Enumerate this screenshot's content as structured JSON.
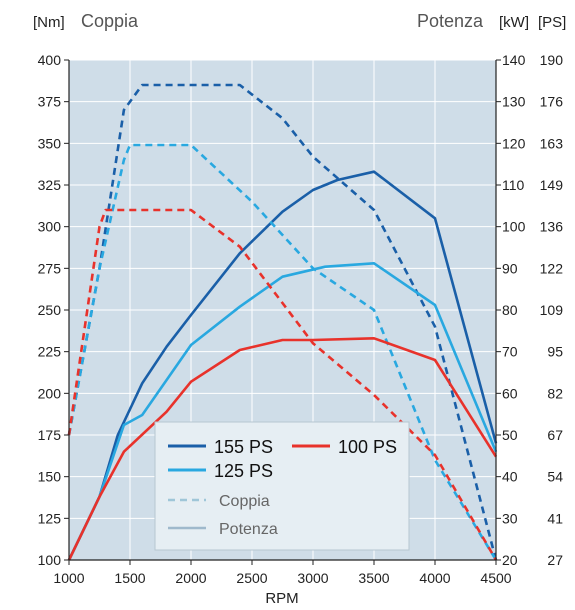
{
  "chart_data": {
    "type": "line",
    "header": {
      "left_unit": "[Nm]",
      "left_title": "Coppia",
      "right_title": "Potenza",
      "right_unit_kw": "[kW]",
      "right_unit_ps": "[PS]"
    },
    "xlabel": "RPM",
    "xlim": [
      1000,
      4500
    ],
    "x_ticks": [
      1000,
      1500,
      2000,
      2500,
      3000,
      3500,
      4000,
      4500
    ],
    "ylim": [
      100,
      400
    ],
    "y_ticks": [
      100,
      125,
      150,
      175,
      200,
      225,
      250,
      275,
      300,
      325,
      350,
      375,
      400
    ],
    "kw_ticks": [
      20,
      30,
      40,
      50,
      60,
      70,
      80,
      90,
      100,
      110,
      120,
      130,
      140
    ],
    "ps_ticks": [
      27,
      41,
      54,
      67,
      82,
      95,
      109,
      122,
      136,
      149,
      163,
      176,
      190
    ],
    "grid": true,
    "legend_position": "bottom-center",
    "legend": {
      "series_items": [
        {
          "label": "155 PS",
          "color": "#1a5fa8"
        },
        {
          "label": "100 PS",
          "color": "#e8322b"
        },
        {
          "label": "125 PS",
          "color": "#29a8e0"
        }
      ],
      "style_items": [
        {
          "label": "Coppia",
          "style": "dashed",
          "color": "#9fc6d8"
        },
        {
          "label": "Potenza",
          "style": "solid",
          "color": "#9fb9cc"
        }
      ]
    },
    "series": [
      {
        "name": "155 PS",
        "metric": "Coppia",
        "color": "#1a5fa8",
        "x": [
          1000,
          1250,
          1450,
          1600,
          2000,
          2400,
          2750,
          3000,
          3500,
          4000,
          4500
        ],
        "y": [
          175,
          275,
          370,
          385,
          385,
          385,
          365,
          342,
          310,
          240,
          100
        ]
      },
      {
        "name": "155 PS",
        "metric": "Potenza",
        "color": "#1a5fa8",
        "x": [
          1000,
          1250,
          1400,
          1600,
          1800,
          2000,
          2400,
          2750,
          3000,
          3200,
          3500,
          4000,
          4500
        ],
        "y": [
          100,
          138,
          175,
          206,
          228,
          247,
          284,
          309,
          322,
          328,
          333,
          305,
          170
        ]
      },
      {
        "name": "125 PS",
        "metric": "Coppia",
        "color": "#29a8e0",
        "x": [
          1000,
          1250,
          1450,
          1500,
          2000,
          2500,
          3000,
          3500,
          4000,
          4500
        ],
        "y": [
          175,
          275,
          340,
          349,
          349,
          315,
          275,
          250,
          160,
          100
        ]
      },
      {
        "name": "125 PS",
        "metric": "Potenza",
        "color": "#29a8e0",
        "x": [
          1000,
          1250,
          1450,
          1600,
          2000,
          2400,
          2750,
          3100,
          3500,
          4000,
          4500
        ],
        "y": [
          100,
          138,
          181,
          187,
          229,
          252,
          270,
          276,
          278,
          253,
          165
        ]
      },
      {
        "name": "100 PS",
        "metric": "Coppia",
        "color": "#e8322b",
        "x": [
          1000,
          1250,
          1300,
          2000,
          2400,
          3000,
          3500,
          4000,
          4500
        ],
        "y": [
          175,
          300,
          310,
          310,
          288,
          230,
          199,
          163,
          100
        ]
      },
      {
        "name": "100 PS",
        "metric": "Potenza",
        "color": "#e8322b",
        "x": [
          1000,
          1250,
          1450,
          1800,
          2000,
          2400,
          2750,
          3000,
          3500,
          4000,
          4500
        ],
        "y": [
          100,
          138,
          165,
          189,
          207,
          226,
          232,
          232,
          233,
          220,
          162
        ]
      }
    ]
  }
}
